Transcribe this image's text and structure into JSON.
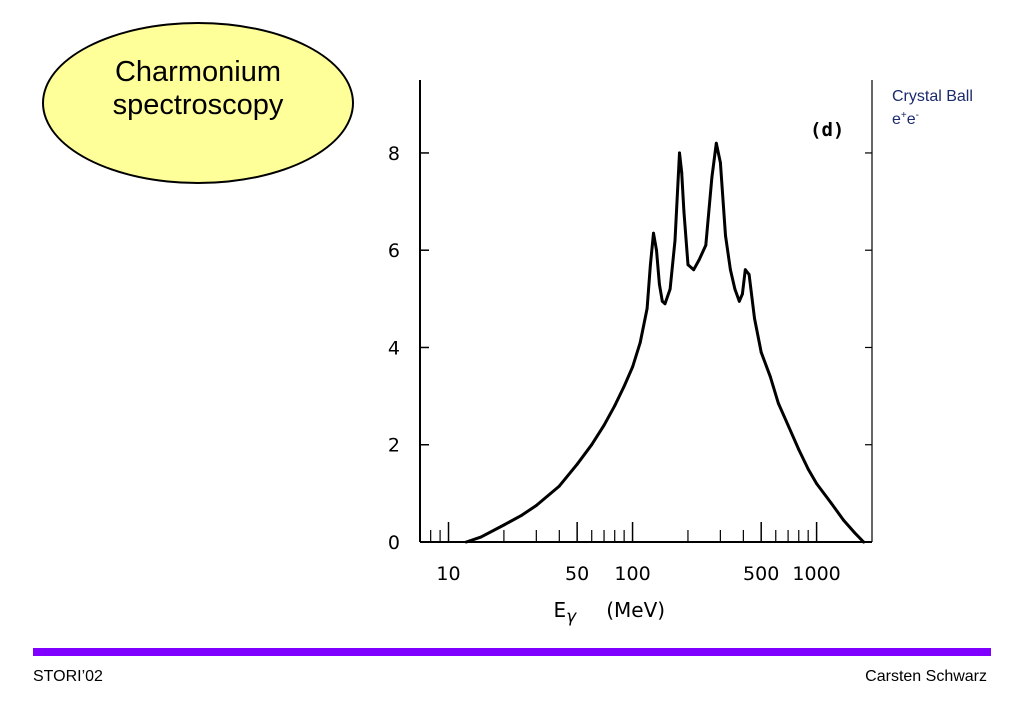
{
  "slide": {
    "title_line1": "Charmonium",
    "title_line2": "spectroscopy",
    "annotation_line1": "Crystal Ball",
    "annotation_e1": "e",
    "annotation_sup1": "+",
    "annotation_e2": "e",
    "annotation_sup2": "-",
    "footer_left": "STORI’02",
    "footer_right": "Carsten Schwarz",
    "accent_color": "#7f00ff",
    "ellipse_color": "#ffff99"
  },
  "chart_data": {
    "type": "line",
    "panel_label": "(d)",
    "xlabel_symbol": "E",
    "xlabel_subscript": "γ",
    "xlabel_unit": "(MeV)",
    "x_scale": "log",
    "xlim": [
      7,
      2000
    ],
    "ylim": [
      0,
      9.5
    ],
    "x_tick_labels": [
      {
        "value": 10,
        "label": "10"
      },
      {
        "value": 50,
        "label": "50"
      },
      {
        "value": 100,
        "label": "100"
      },
      {
        "value": 500,
        "label": "500"
      },
      {
        "value": 1000,
        "label": "1000"
      }
    ],
    "x_minor_ticks": [
      8,
      9,
      20,
      30,
      40,
      60,
      70,
      80,
      90,
      200,
      300,
      400,
      600,
      700,
      800,
      900
    ],
    "y_tick_labels": [
      {
        "value": 0,
        "label": "0"
      },
      {
        "value": 2,
        "label": "2"
      },
      {
        "value": 4,
        "label": "4"
      },
      {
        "value": 6,
        "label": "6"
      },
      {
        "value": 8,
        "label": "8"
      }
    ],
    "grid": false,
    "series": [
      {
        "x": [
          12.5,
          15,
          20,
          25,
          30,
          40,
          50,
          60,
          70,
          80,
          90,
          100,
          110,
          120,
          125,
          130,
          135,
          140,
          145,
          150,
          160,
          170,
          180,
          185,
          190,
          200,
          215,
          230,
          250,
          270,
          285,
          300,
          320,
          340,
          360,
          380,
          395,
          410,
          430,
          460,
          500,
          560,
          620,
          700,
          800,
          900,
          1000,
          1200,
          1400,
          1600,
          1800
        ],
        "y": [
          0.0,
          0.1,
          0.35,
          0.55,
          0.75,
          1.15,
          1.6,
          2.0,
          2.4,
          2.8,
          3.2,
          3.6,
          4.1,
          4.8,
          5.7,
          6.35,
          6.0,
          5.3,
          4.95,
          4.9,
          5.2,
          6.2,
          8.0,
          7.6,
          6.8,
          5.7,
          5.6,
          5.8,
          6.1,
          7.5,
          8.2,
          7.8,
          6.3,
          5.6,
          5.2,
          4.95,
          5.1,
          5.6,
          5.5,
          4.6,
          3.9,
          3.4,
          2.85,
          2.4,
          1.9,
          1.5,
          1.2,
          0.8,
          0.45,
          0.2,
          0.0
        ]
      }
    ]
  }
}
